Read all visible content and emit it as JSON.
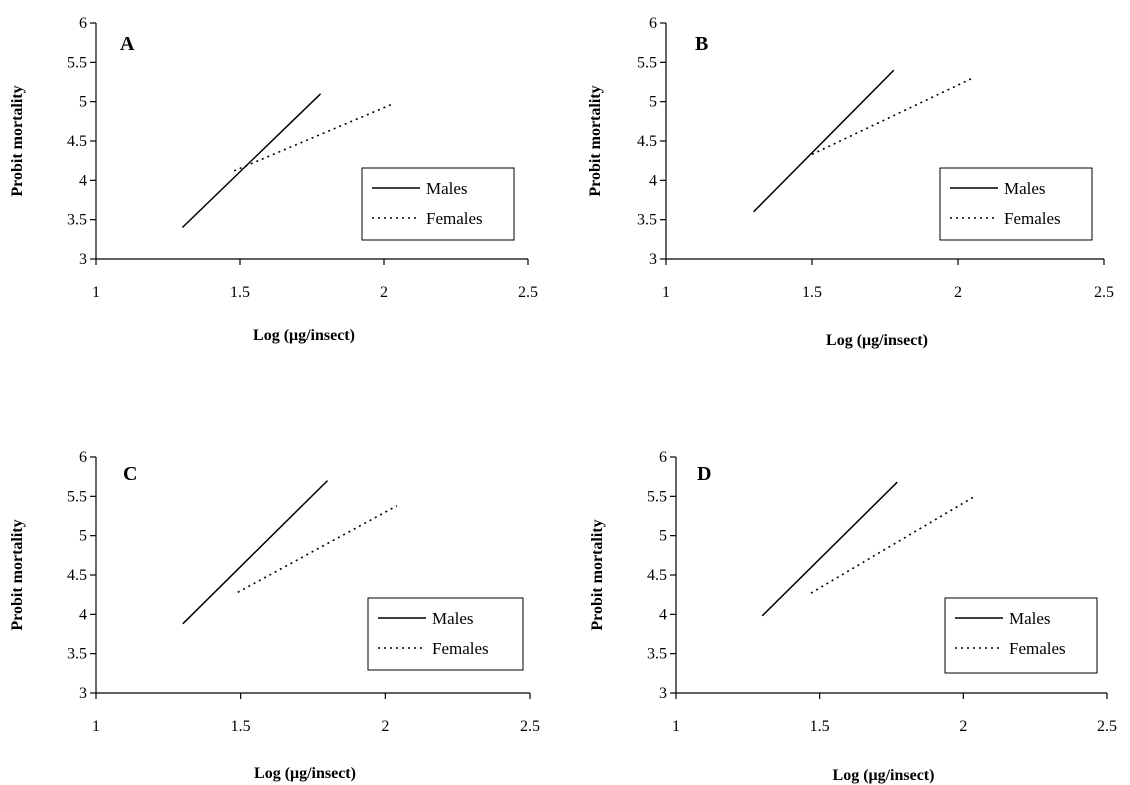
{
  "chart_data": [
    {
      "type": "line",
      "panel": "A",
      "xlabel": "Log (μg/insect)",
      "ylabel": "Probit mortality",
      "xlim": [
        1,
        2.5
      ],
      "ylim": [
        3,
        6
      ],
      "xticks": [
        "1",
        "1.5",
        "2",
        "2.5"
      ],
      "yticks": [
        "3",
        "3.5",
        "4",
        "4.5",
        "5",
        "5.5",
        "6"
      ],
      "legend": {
        "placement": "right",
        "entries": [
          "Males",
          "Females"
        ]
      },
      "series": [
        {
          "name": "Males",
          "style": "solid",
          "x": [
            1.3,
            1.78
          ],
          "y": [
            3.4,
            5.1
          ]
        },
        {
          "name": "Females",
          "style": "dotted",
          "x": [
            1.48,
            2.03
          ],
          "y": [
            4.12,
            4.97
          ]
        }
      ]
    },
    {
      "type": "line",
      "panel": "B",
      "xlabel": "Log (μg/insect)",
      "ylabel": "Probit mortality",
      "xlim": [
        1,
        2.5
      ],
      "ylim": [
        3,
        6
      ],
      "xticks": [
        "1",
        "1.5",
        "2",
        "2.5"
      ],
      "yticks": [
        "3",
        "3.5",
        "4",
        "4.5",
        "5",
        "5.5",
        "6"
      ],
      "legend": {
        "placement": "right",
        "entries": [
          "Males",
          "Females"
        ]
      },
      "series": [
        {
          "name": "Males",
          "style": "solid",
          "x": [
            1.3,
            1.78
          ],
          "y": [
            3.6,
            5.4
          ]
        },
        {
          "name": "Females",
          "style": "dotted",
          "x": [
            1.5,
            2.05
          ],
          "y": [
            4.33,
            5.3
          ]
        }
      ]
    },
    {
      "type": "line",
      "panel": "C",
      "xlabel": "Log (μg/insect)",
      "ylabel": "Probit mortality",
      "xlim": [
        1,
        2.5
      ],
      "ylim": [
        3,
        6
      ],
      "xticks": [
        "1",
        "1.5",
        "2",
        "2.5"
      ],
      "yticks": [
        "3",
        "3.5",
        "4",
        "4.5",
        "5",
        "5.5",
        "6"
      ],
      "legend": {
        "placement": "right",
        "entries": [
          "Males",
          "Females"
        ]
      },
      "series": [
        {
          "name": "Males",
          "style": "solid",
          "x": [
            1.3,
            1.8
          ],
          "y": [
            3.88,
            5.7
          ]
        },
        {
          "name": "Females",
          "style": "dotted",
          "x": [
            1.49,
            2.04
          ],
          "y": [
            4.28,
            5.38
          ]
        }
      ]
    },
    {
      "type": "line",
      "panel": "D",
      "xlabel": "Log (μg/insect)",
      "ylabel": "Probit mortality",
      "xlim": [
        1,
        2.5
      ],
      "ylim": [
        3,
        6
      ],
      "xticks": [
        "1",
        "1.5",
        "2",
        "2.5"
      ],
      "yticks": [
        "3",
        "3.5",
        "4",
        "4.5",
        "5",
        "5.5",
        "6"
      ],
      "legend": {
        "placement": "right",
        "entries": [
          "Males",
          "Females"
        ]
      },
      "series": [
        {
          "name": "Males",
          "style": "solid",
          "x": [
            1.3,
            1.77
          ],
          "y": [
            3.98,
            5.68
          ]
        },
        {
          "name": "Females",
          "style": "dotted",
          "x": [
            1.47,
            2.04
          ],
          "y": [
            4.27,
            5.5
          ]
        }
      ]
    }
  ]
}
